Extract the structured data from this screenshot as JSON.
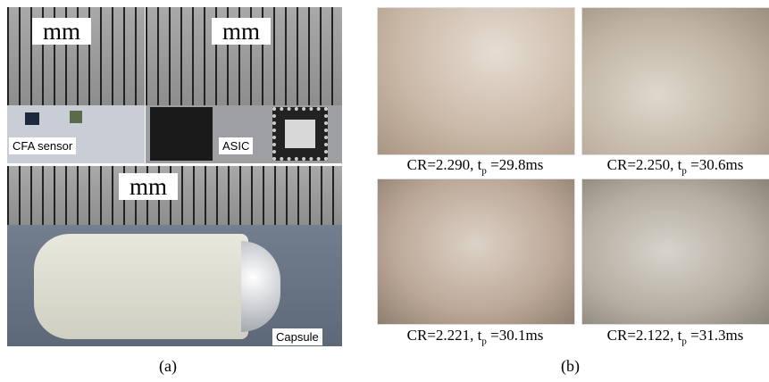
{
  "panel_a": {
    "sensor_photo": {
      "scale_label": "mm",
      "tag": "CFA sensor"
    },
    "asic_photo": {
      "scale_label": "mm",
      "tag": "ASIC"
    },
    "capsule_photo": {
      "scale_label": "mm",
      "tag": "Capsule"
    },
    "label": "(a)"
  },
  "panel_b": {
    "images": [
      {
        "caption": {
          "prefix": "CR=2.290, t",
          "sub": "p",
          "suffix": " =29.8ms"
        }
      },
      {
        "caption": {
          "prefix": "CR=2.250, t",
          "sub": "p",
          "suffix": " =30.6ms"
        }
      },
      {
        "caption": {
          "prefix": "CR=2.221, t",
          "sub": "p",
          "suffix": " =30.1ms"
        }
      },
      {
        "caption": {
          "prefix": "CR=2.122, t",
          "sub": "p",
          "suffix": " =31.3ms"
        }
      }
    ],
    "label": "(b)"
  }
}
